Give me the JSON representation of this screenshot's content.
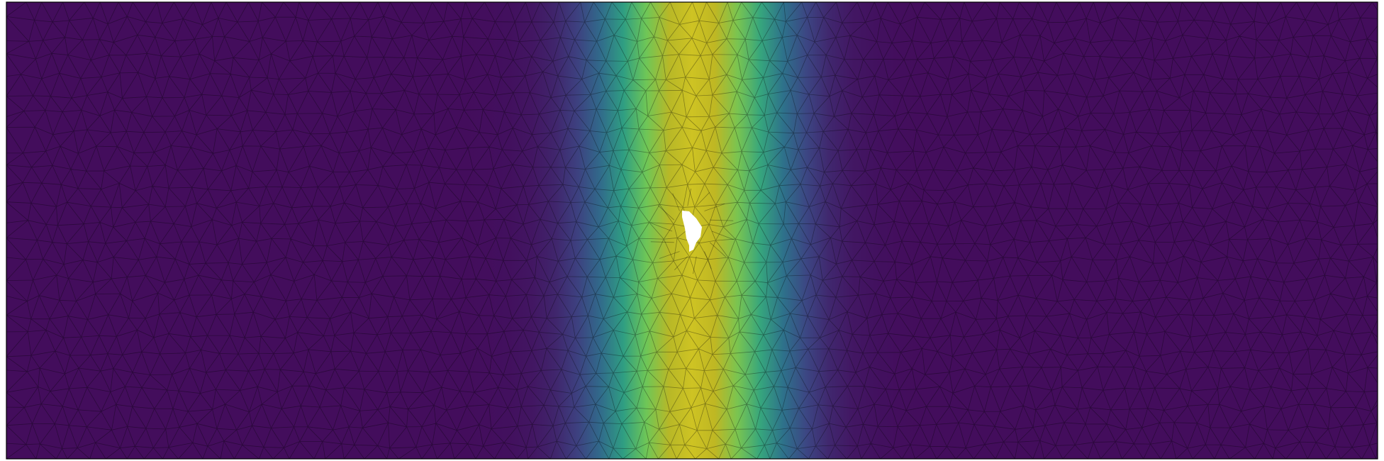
{
  "scene": {
    "kind": "mesh-scalar-field",
    "colormap": {
      "name": "viridis",
      "stops": [
        "#440154",
        "#3b528b",
        "#21918c",
        "#5ec962",
        "#bfb723",
        "#fde725"
      ]
    },
    "field_profile": {
      "description_key": "gaussian-band",
      "peak_value": 0.85,
      "background_value": 0.03
    },
    "mesh": {
      "element_type": "triangle",
      "edge_color": "#000000",
      "edge_opacity": 0.35
    },
    "hole": {
      "present": true,
      "fill": "#ffffff"
    },
    "border_color": "#000000"
  }
}
